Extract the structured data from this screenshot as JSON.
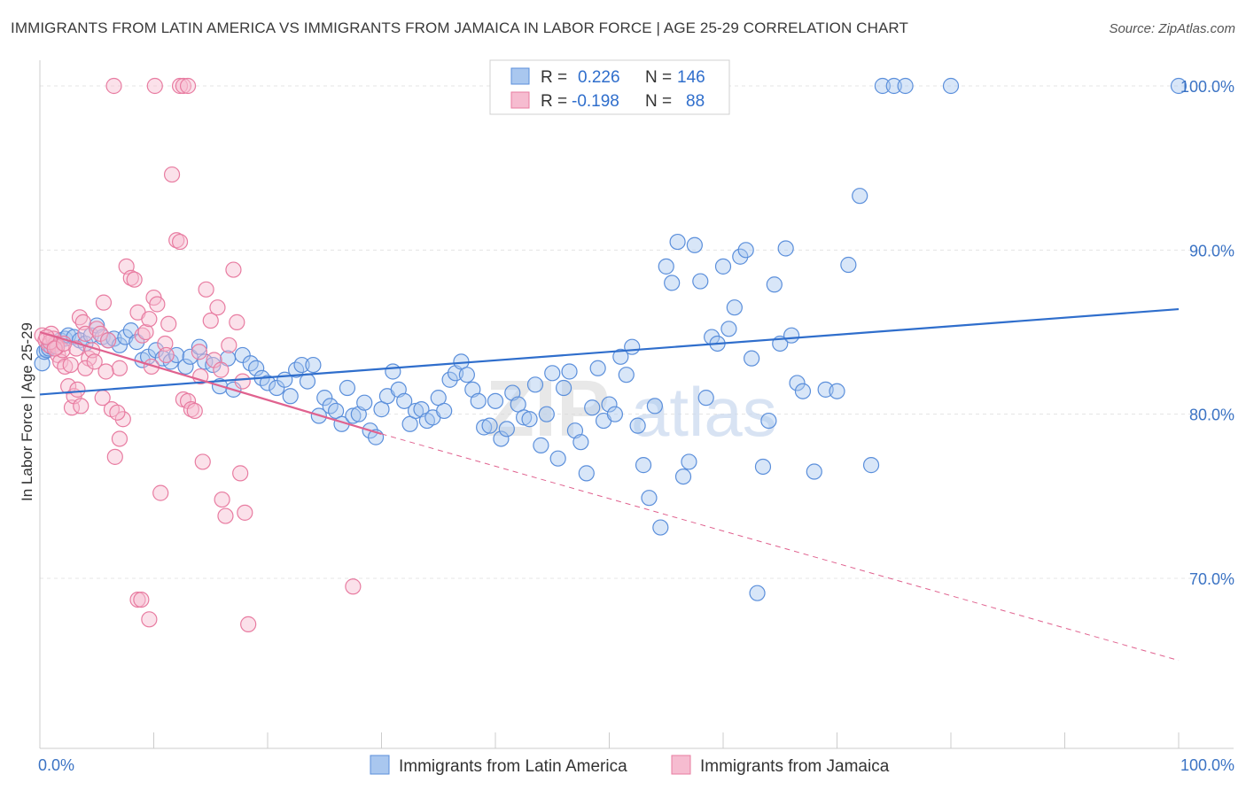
{
  "title": "IMMIGRANTS FROM LATIN AMERICA VS IMMIGRANTS FROM JAMAICA IN LABOR FORCE | AGE 25-29 CORRELATION CHART",
  "source": "Source: ZipAtlas.com",
  "watermark": {
    "zip": "ZIP",
    "atlas": "atlas"
  },
  "legend": {
    "rows": [
      {
        "r_label": "R =",
        "r_value": "0.226",
        "n_label": "N =",
        "n_value": "146"
      },
      {
        "r_label": "R =",
        "r_value": "-0.198",
        "n_label": "N =",
        "n_value": "88"
      }
    ]
  },
  "chart_data": {
    "type": "scatter",
    "xlabel": "",
    "ylabel": "In Labor Force | Age 25-29",
    "xlim": [
      0,
      100
    ],
    "ylim": [
      60,
      105
    ],
    "x_tick_labels": [
      {
        "value": 0,
        "label": "0.0%"
      },
      {
        "value": 100,
        "label": "100.0%"
      }
    ],
    "y_tick_labels": [
      {
        "value": 100,
        "label": "100.0%"
      },
      {
        "value": 90,
        "label": "90.0%"
      },
      {
        "value": 80,
        "label": "80.0%"
      },
      {
        "value": 70,
        "label": "70.0%"
      }
    ],
    "grid": true,
    "legend_position": "top-center",
    "colors": {
      "latin": "#5b8fdb",
      "latin_fill": "#a9c7ef",
      "jamaica": "#e87ca1",
      "jamaica_fill": "#f6bcd0",
      "latin_line": "#2f6ecc",
      "jamaica_line": "#e0628f"
    },
    "series": [
      {
        "name": "Immigrants from Latin America",
        "trend": {
          "x": [
            0,
            100
          ],
          "y": [
            81.2,
            86.4
          ]
        },
        "points": [
          [
            0.2,
            83.1
          ],
          [
            0.4,
            83.8
          ],
          [
            0.6,
            83.9
          ],
          [
            0.8,
            84.0
          ],
          [
            1.0,
            84.1
          ],
          [
            1.2,
            84.2
          ],
          [
            1.5,
            84.3
          ],
          [
            1.8,
            84.5
          ],
          [
            2.2,
            84.6
          ],
          [
            2.5,
            84.8
          ],
          [
            3.0,
            84.7
          ],
          [
            3.5,
            84.5
          ],
          [
            4.0,
            84.3
          ],
          [
            4.5,
            84.8
          ],
          [
            5.0,
            85.4
          ],
          [
            5.5,
            84.7
          ],
          [
            6.0,
            84.5
          ],
          [
            6.5,
            84.6
          ],
          [
            7.0,
            84.2
          ],
          [
            7.5,
            84.7
          ],
          [
            8.0,
            85.1
          ],
          [
            8.5,
            84.4
          ],
          [
            9.0,
            83.3
          ],
          [
            9.5,
            83.5
          ],
          [
            10.2,
            83.9
          ],
          [
            10.8,
            83.4
          ],
          [
            11.5,
            83.2
          ],
          [
            12.0,
            83.6
          ],
          [
            12.8,
            82.9
          ],
          [
            13.2,
            83.5
          ],
          [
            14.0,
            84.1
          ],
          [
            14.5,
            83.2
          ],
          [
            15.2,
            83.0
          ],
          [
            15.8,
            81.7
          ],
          [
            16.5,
            83.4
          ],
          [
            17.0,
            81.5
          ],
          [
            17.8,
            83.6
          ],
          [
            18.5,
            83.1
          ],
          [
            19.0,
            82.8
          ],
          [
            19.5,
            82.2
          ],
          [
            20.0,
            81.9
          ],
          [
            20.8,
            81.6
          ],
          [
            21.5,
            82.1
          ],
          [
            22.0,
            81.1
          ],
          [
            22.5,
            82.7
          ],
          [
            23.0,
            83.0
          ],
          [
            23.5,
            82.0
          ],
          [
            24.0,
            83.0
          ],
          [
            24.5,
            79.9
          ],
          [
            25.0,
            81.0
          ],
          [
            25.5,
            80.5
          ],
          [
            26.0,
            80.2
          ],
          [
            26.5,
            79.4
          ],
          [
            27.0,
            81.6
          ],
          [
            27.5,
            79.9
          ],
          [
            28.0,
            80.0
          ],
          [
            28.5,
            80.7
          ],
          [
            29.0,
            79.0
          ],
          [
            29.5,
            78.6
          ],
          [
            30.0,
            80.3
          ],
          [
            30.5,
            81.1
          ],
          [
            31.0,
            82.6
          ],
          [
            31.5,
            81.5
          ],
          [
            32.0,
            80.8
          ],
          [
            32.5,
            79.4
          ],
          [
            33.0,
            80.2
          ],
          [
            33.5,
            80.3
          ],
          [
            34.0,
            79.6
          ],
          [
            34.5,
            79.8
          ],
          [
            35.0,
            81.0
          ],
          [
            35.5,
            80.2
          ],
          [
            36.0,
            82.1
          ],
          [
            36.5,
            82.5
          ],
          [
            37.0,
            83.2
          ],
          [
            37.5,
            82.4
          ],
          [
            38.0,
            81.5
          ],
          [
            38.5,
            80.8
          ],
          [
            39.0,
            79.2
          ],
          [
            39.5,
            79.3
          ],
          [
            40.0,
            80.8
          ],
          [
            40.5,
            78.5
          ],
          [
            41.0,
            79.1
          ],
          [
            41.5,
            81.3
          ],
          [
            42.0,
            80.6
          ],
          [
            42.5,
            79.8
          ],
          [
            43.0,
            79.7
          ],
          [
            43.5,
            81.8
          ],
          [
            44.0,
            78.1
          ],
          [
            44.5,
            80.0
          ],
          [
            45.0,
            82.5
          ],
          [
            45.5,
            77.3
          ],
          [
            46.0,
            81.6
          ],
          [
            46.5,
            82.6
          ],
          [
            47.0,
            79.0
          ],
          [
            47.5,
            78.3
          ],
          [
            48.0,
            76.4
          ],
          [
            48.5,
            80.4
          ],
          [
            49.0,
            82.8
          ],
          [
            49.5,
            79.6
          ],
          [
            50.0,
            80.6
          ],
          [
            50.5,
            80.0
          ],
          [
            51.0,
            83.5
          ],
          [
            51.5,
            82.4
          ],
          [
            52.0,
            84.1
          ],
          [
            52.5,
            79.3
          ],
          [
            53.0,
            76.9
          ],
          [
            53.5,
            74.9
          ],
          [
            54.0,
            80.5
          ],
          [
            54.5,
            73.1
          ],
          [
            55.0,
            89.0
          ],
          [
            55.5,
            88.0
          ],
          [
            56.0,
            90.5
          ],
          [
            56.5,
            76.2
          ],
          [
            57.0,
            77.1
          ],
          [
            57.5,
            90.3
          ],
          [
            58.0,
            88.1
          ],
          [
            58.5,
            81.0
          ],
          [
            59.0,
            84.7
          ],
          [
            59.5,
            84.3
          ],
          [
            60.0,
            89.0
          ],
          [
            60.5,
            85.2
          ],
          [
            61.0,
            86.5
          ],
          [
            61.5,
            89.6
          ],
          [
            62.0,
            90.0
          ],
          [
            62.5,
            83.4
          ],
          [
            63.0,
            69.1
          ],
          [
            63.5,
            76.8
          ],
          [
            64.0,
            79.6
          ],
          [
            64.5,
            87.9
          ],
          [
            65.0,
            84.3
          ],
          [
            65.5,
            90.1
          ],
          [
            66.0,
            84.8
          ],
          [
            66.5,
            81.9
          ],
          [
            67.0,
            81.4
          ],
          [
            68.0,
            76.5
          ],
          [
            69.0,
            81.5
          ],
          [
            70.0,
            81.4
          ],
          [
            71.0,
            89.1
          ],
          [
            72.0,
            93.3
          ],
          [
            73.0,
            76.9
          ],
          [
            74.0,
            100.0
          ],
          [
            75.0,
            100.0
          ],
          [
            76.0,
            100.0
          ],
          [
            80.0,
            100.0
          ],
          [
            100.0,
            100.0
          ]
        ]
      },
      {
        "name": "Immigrants from Jamaica",
        "trend": {
          "x": [
            0,
            30
          ],
          "y": [
            85.0,
            78.8
          ],
          "dashed_to": {
            "x": 100,
            "y": 65.0
          }
        },
        "points": [
          [
            0.2,
            84.8
          ],
          [
            0.5,
            84.5
          ],
          [
            0.8,
            84.2
          ],
          [
            1.0,
            84.9
          ],
          [
            1.2,
            84.6
          ],
          [
            1.4,
            84.3
          ],
          [
            1.6,
            83.6
          ],
          [
            1.8,
            83.2
          ],
          [
            2.0,
            83.9
          ],
          [
            2.2,
            82.9
          ],
          [
            2.5,
            81.7
          ],
          [
            2.8,
            80.4
          ],
          [
            3.0,
            81.1
          ],
          [
            3.2,
            84.0
          ],
          [
            3.5,
            85.9
          ],
          [
            3.8,
            85.6
          ],
          [
            4.0,
            84.9
          ],
          [
            4.3,
            83.4
          ],
          [
            4.6,
            83.9
          ],
          [
            5.0,
            85.2
          ],
          [
            5.3,
            84.9
          ],
          [
            5.6,
            86.8
          ],
          [
            6.0,
            84.5
          ],
          [
            6.3,
            80.3
          ],
          [
            6.6,
            77.4
          ],
          [
            7.0,
            78.5
          ],
          [
            7.3,
            79.7
          ],
          [
            7.6,
            89.0
          ],
          [
            8.0,
            88.3
          ],
          [
            8.3,
            88.2
          ],
          [
            8.6,
            86.2
          ],
          [
            9.0,
            84.8
          ],
          [
            9.3,
            85.0
          ],
          [
            9.6,
            85.8
          ],
          [
            10.0,
            87.1
          ],
          [
            10.3,
            86.7
          ],
          [
            10.6,
            75.2
          ],
          [
            11.0,
            84.3
          ],
          [
            11.3,
            85.5
          ],
          [
            11.6,
            94.6
          ],
          [
            12.0,
            90.6
          ],
          [
            12.3,
            90.5
          ],
          [
            12.6,
            80.9
          ],
          [
            13.0,
            80.8
          ],
          [
            13.3,
            80.3
          ],
          [
            13.6,
            80.2
          ],
          [
            14.0,
            83.8
          ],
          [
            14.3,
            77.1
          ],
          [
            14.6,
            87.6
          ],
          [
            15.0,
            85.7
          ],
          [
            15.3,
            83.3
          ],
          [
            15.6,
            86.5
          ],
          [
            16.0,
            74.8
          ],
          [
            16.3,
            73.8
          ],
          [
            16.6,
            84.2
          ],
          [
            17.0,
            88.8
          ],
          [
            17.3,
            85.6
          ],
          [
            17.6,
            76.4
          ],
          [
            18.0,
            74.0
          ],
          [
            18.3,
            67.2
          ],
          [
            6.5,
            100.0
          ],
          [
            10.1,
            100.0
          ],
          [
            12.3,
            100.0
          ],
          [
            12.6,
            100.0
          ],
          [
            13.0,
            100.0
          ],
          [
            8.6,
            68.7
          ],
          [
            8.9,
            68.7
          ],
          [
            9.6,
            67.5
          ],
          [
            27.5,
            69.5
          ],
          [
            5.5,
            81.0
          ],
          [
            6.8,
            80.1
          ],
          [
            7.0,
            82.8
          ],
          [
            4.0,
            82.8
          ],
          [
            3.3,
            81.5
          ],
          [
            2.7,
            83.0
          ],
          [
            1.5,
            84.1
          ],
          [
            0.9,
            84.4
          ],
          [
            0.6,
            84.7
          ],
          [
            1.3,
            84.0
          ],
          [
            2.1,
            84.3
          ],
          [
            4.8,
            83.2
          ],
          [
            5.8,
            82.6
          ],
          [
            3.6,
            80.5
          ],
          [
            9.8,
            82.9
          ],
          [
            11.1,
            83.6
          ],
          [
            14.1,
            82.3
          ],
          [
            15.9,
            82.7
          ],
          [
            17.8,
            82.0
          ]
        ]
      }
    ]
  }
}
